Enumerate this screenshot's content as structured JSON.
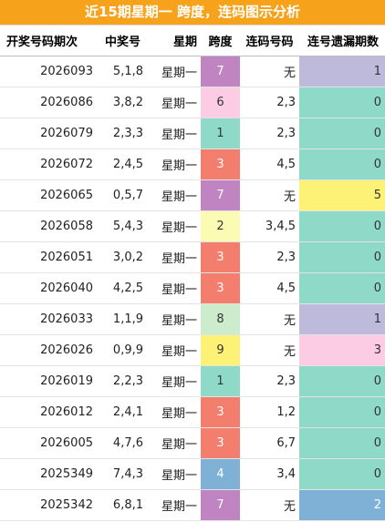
{
  "title": "近15期星期一 跨度，连码图示分析",
  "headers": [
    "开奖号码期次",
    "中奖号",
    "星期",
    "跨度",
    "连码号码",
    "连号遗漏期数"
  ],
  "colors": {
    "title_bg": "#f7a21b",
    "span": {
      "1": "#8fd9c8",
      "2": "#fbfbb3",
      "3": "#f47e6e",
      "4": "#7fb0d6",
      "6": "#fccce4",
      "7": "#c084c2",
      "8": "#cdeccb",
      "9": "#fdf176"
    },
    "miss": {
      "0": "#8fd9c8",
      "1": "#bebadb",
      "2": "#7fb0d6",
      "3": "#fccce4",
      "5": "#fdf176"
    },
    "light_text": "#ffffff",
    "dark_text": "#333333"
  },
  "rows": [
    {
      "period": "2026093",
      "numbers": "5,1,8",
      "weekday": "星期一",
      "span": "7",
      "consecutive": "无",
      "miss": "1"
    },
    {
      "period": "2026086",
      "numbers": "3,8,2",
      "weekday": "星期一",
      "span": "6",
      "consecutive": "2,3",
      "miss": "0"
    },
    {
      "period": "2026079",
      "numbers": "2,3,3",
      "weekday": "星期一",
      "span": "1",
      "consecutive": "2,3",
      "miss": "0"
    },
    {
      "period": "2026072",
      "numbers": "2,4,5",
      "weekday": "星期一",
      "span": "3",
      "consecutive": "4,5",
      "miss": "0"
    },
    {
      "period": "2026065",
      "numbers": "0,5,7",
      "weekday": "星期一",
      "span": "7",
      "consecutive": "无",
      "miss": "5"
    },
    {
      "period": "2026058",
      "numbers": "5,4,3",
      "weekday": "星期一",
      "span": "2",
      "consecutive": "3,4,5",
      "miss": "0"
    },
    {
      "period": "2026051",
      "numbers": "3,0,2",
      "weekday": "星期一",
      "span": "3",
      "consecutive": "2,3",
      "miss": "0"
    },
    {
      "period": "2026040",
      "numbers": "4,2,5",
      "weekday": "星期一",
      "span": "3",
      "consecutive": "4,5",
      "miss": "0"
    },
    {
      "period": "2026033",
      "numbers": "1,1,9",
      "weekday": "星期一",
      "span": "8",
      "consecutive": "无",
      "miss": "1"
    },
    {
      "period": "2026026",
      "numbers": "0,9,9",
      "weekday": "星期一",
      "span": "9",
      "consecutive": "无",
      "miss": "3"
    },
    {
      "period": "2026019",
      "numbers": "2,2,3",
      "weekday": "星期一",
      "span": "1",
      "consecutive": "2,3",
      "miss": "0"
    },
    {
      "period": "2026012",
      "numbers": "2,4,1",
      "weekday": "星期一",
      "span": "3",
      "consecutive": "1,2",
      "miss": "0"
    },
    {
      "period": "2026005",
      "numbers": "4,7,6",
      "weekday": "星期一",
      "span": "3",
      "consecutive": "6,7",
      "miss": "0"
    },
    {
      "period": "2025349",
      "numbers": "7,4,3",
      "weekday": "星期一",
      "span": "4",
      "consecutive": "3,4",
      "miss": "0"
    },
    {
      "period": "2025342",
      "numbers": "6,8,1",
      "weekday": "星期一",
      "span": "7",
      "consecutive": "无",
      "miss": "2"
    }
  ]
}
